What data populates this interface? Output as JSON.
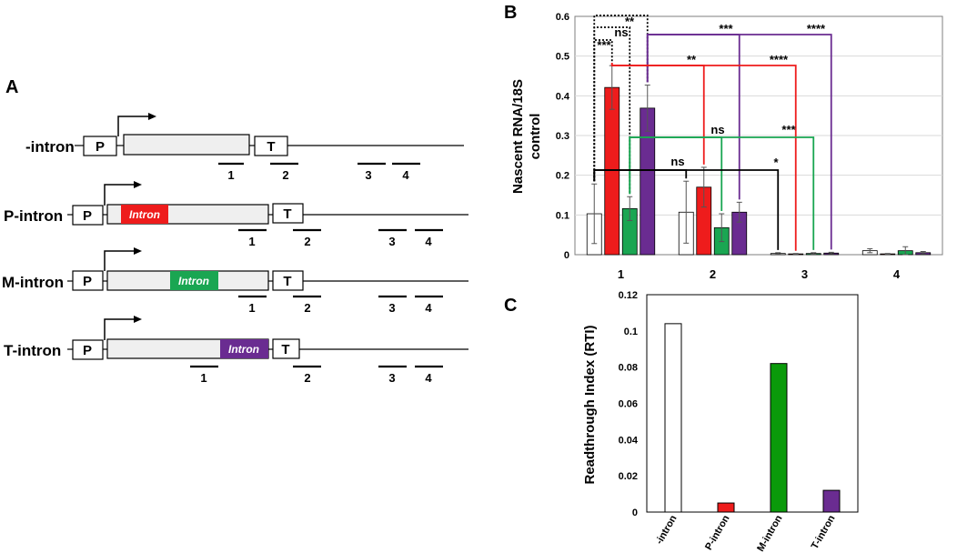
{
  "panels": {
    "a": "A",
    "b": "B",
    "c": "C"
  },
  "schematic": {
    "promoter_label": "P",
    "terminator_label": "T",
    "intron_label": "Intron",
    "constructs": [
      {
        "name": "-intron",
        "intron_position": "none",
        "probes": [
          "1",
          "2",
          "3",
          "4"
        ]
      },
      {
        "name": "P-intron",
        "intron_position": "promoter-proximal",
        "intron_color": "#ee1c1c",
        "probes": [
          "1",
          "2",
          "3",
          "4"
        ]
      },
      {
        "name": "M-intron",
        "intron_position": "middle",
        "intron_color": "#1aa652",
        "probes": [
          "1",
          "2",
          "3",
          "4"
        ]
      },
      {
        "name": "T-intron",
        "intron_position": "terminator-proximal",
        "intron_color": "#6a2c91",
        "probes": [
          "1",
          "2",
          "3",
          "4"
        ]
      }
    ]
  },
  "chart_data": [
    {
      "type": "bar",
      "panel": "B",
      "ylabel": "Nascent RNA/18S\ncontrol",
      "ylim": [
        0,
        0.6
      ],
      "yticks": [
        "0",
        "0.1",
        "0.2",
        "0.3",
        "0.4",
        "0.5",
        "0.6"
      ],
      "grid": true,
      "categories": [
        "1",
        "2",
        "3",
        "4"
      ],
      "series": [
        {
          "name": "-intron",
          "color": "#ffffff",
          "values": [
            0.103,
            0.107,
            0.003,
            0.01
          ],
          "errors": [
            0.075,
            0.078,
            0.002,
            0.005
          ]
        },
        {
          "name": "P-intron",
          "color": "#ee1c1c",
          "values": [
            0.421,
            0.17,
            0.002,
            0.002
          ],
          "errors": [
            0.055,
            0.05,
            0.001,
            0.001
          ]
        },
        {
          "name": "M-intron",
          "color": "#1aa652",
          "values": [
            0.116,
            0.068,
            0.003,
            0.01
          ],
          "errors": [
            0.03,
            0.035,
            0.002,
            0.01
          ]
        },
        {
          "name": "T-intron",
          "color": "#6a2c91",
          "values": [
            0.369,
            0.107,
            0.004,
            0.005
          ],
          "errors": [
            0.058,
            0.025,
            0.002,
            0.003
          ]
        }
      ],
      "significance": [
        {
          "label": "***",
          "style": "dotted",
          "color": "#000000"
        },
        {
          "label": "ns",
          "style": "dotted",
          "color": "#000000"
        },
        {
          "label": "**",
          "style": "dotted",
          "color": "#000000"
        },
        {
          "label": "***",
          "style": "solid",
          "color": "#6a2c91"
        },
        {
          "label": "****",
          "style": "solid",
          "color": "#6a2c91"
        },
        {
          "label": "**",
          "style": "solid",
          "color": "#ee1c1c"
        },
        {
          "label": "****",
          "style": "solid",
          "color": "#ee1c1c"
        },
        {
          "label": "ns",
          "style": "solid",
          "color": "#1aa652"
        },
        {
          "label": "***",
          "style": "solid",
          "color": "#1aa652"
        },
        {
          "label": "ns",
          "style": "solid",
          "color": "#000000"
        },
        {
          "label": "*",
          "style": "solid",
          "color": "#000000"
        }
      ]
    },
    {
      "type": "bar",
      "panel": "C",
      "ylabel": "Readthrough Index (RTI)",
      "ylim": [
        0,
        0.12
      ],
      "yticks": [
        "0",
        "0.02",
        "0.04",
        "0.06",
        "0.08",
        "0.1",
        "0.12"
      ],
      "grid": false,
      "categories": [
        "-intron",
        "P-intron",
        "M-intron",
        "T-intron"
      ],
      "values": [
        0.104,
        0.005,
        0.082,
        0.012
      ],
      "colors": [
        "#ffffff",
        "#ee1c1c",
        "#0a9a0a",
        "#6a2c91"
      ]
    }
  ]
}
